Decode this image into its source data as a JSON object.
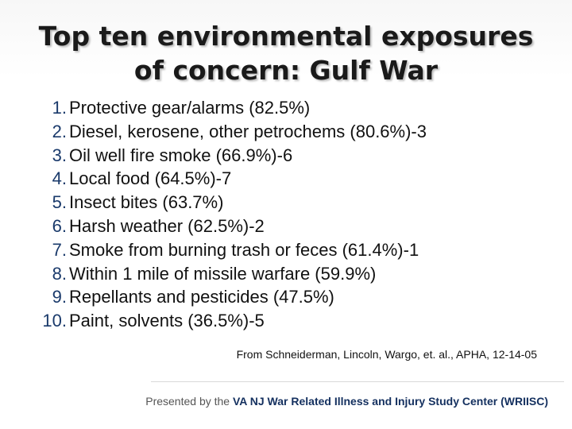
{
  "slide": {
    "title_line1": "Top ten environmental exposures",
    "title_line2": "of concern: Gulf War",
    "items": [
      {
        "num": "1.",
        "text": "Protective gear/alarms (82.5%)"
      },
      {
        "num": "2.",
        "text": "Diesel, kerosene, other petrochems (80.6%)-3"
      },
      {
        "num": "3.",
        "text": "Oil well fire smoke (66.9%)-6"
      },
      {
        "num": "4.",
        "text": "Local food (64.5%)-7"
      },
      {
        "num": "5.",
        "text": "Insect bites (63.7%)"
      },
      {
        "num": "6.",
        "text": "Harsh weather (62.5%)-2"
      },
      {
        "num": "7.",
        "text": "Smoke from burning trash or feces (61.4%)-1"
      },
      {
        "num": "8.",
        "text": "Within 1 mile of missile warfare (59.9%)"
      },
      {
        "num": "9.",
        "text": "Repellants and pesticides (47.5%)"
      },
      {
        "num": "10.",
        "text": "Paint, solvents (36.5%)-5"
      }
    ],
    "citation": "From Schneiderman, Lincoln, Wargo, et. al., APHA, 12-14-05"
  },
  "footer": {
    "prefix": "Presented by the",
    "org": "VA NJ War Related Illness and Injury Study Center",
    "abbr": "(WRIISC)"
  },
  "colors": {
    "number": "#1a3a6b",
    "footer_org": "#14305f"
  }
}
